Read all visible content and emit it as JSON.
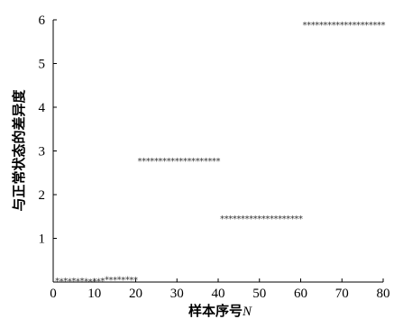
{
  "chart_data": {
    "type": "scatter",
    "xlabel": "样本序号",
    "xlabel_var": "N",
    "ylabel": "与正常状态的差异度",
    "xlim": [
      0,
      80
    ],
    "ylim": [
      0,
      6
    ],
    "xticks": [
      "0",
      "10",
      "20",
      "30",
      "40",
      "50",
      "60",
      "70",
      "80"
    ],
    "yticks": [
      "1",
      "2",
      "3",
      "4",
      "5",
      "6"
    ],
    "marker": "*",
    "grid": false,
    "series": [
      {
        "x": [
          1,
          2,
          3,
          4,
          5,
          6,
          7,
          8,
          9,
          10,
          11,
          12,
          13,
          14,
          15,
          16,
          17,
          18,
          19,
          20,
          21,
          22,
          23,
          24,
          25,
          26,
          27,
          28,
          29,
          30,
          31,
          32,
          33,
          34,
          35,
          36,
          37,
          38,
          39,
          40,
          41,
          42,
          43,
          44,
          45,
          46,
          47,
          48,
          49,
          50,
          51,
          52,
          53,
          54,
          55,
          56,
          57,
          58,
          59,
          60,
          61,
          62,
          63,
          64,
          65,
          66,
          67,
          68,
          69,
          70,
          71,
          72,
          73,
          74,
          75,
          76,
          77,
          78,
          79,
          80
        ],
        "y": [
          0.04,
          0.03,
          0.04,
          0.03,
          0.04,
          0.03,
          0.04,
          0.03,
          0.02,
          0.03,
          0.03,
          0.04,
          0.07,
          0.06,
          0.06,
          0.07,
          0.06,
          0.07,
          0.06,
          0.06,
          2.78,
          2.78,
          2.78,
          2.78,
          2.78,
          2.78,
          2.78,
          2.78,
          2.78,
          2.78,
          2.78,
          2.78,
          2.78,
          2.78,
          2.78,
          2.78,
          2.78,
          2.78,
          2.78,
          2.78,
          1.46,
          1.46,
          1.46,
          1.46,
          1.46,
          1.46,
          1.46,
          1.46,
          1.46,
          1.46,
          1.46,
          1.46,
          1.46,
          1.46,
          1.46,
          1.46,
          1.46,
          1.46,
          1.46,
          1.46,
          5.9,
          5.9,
          5.9,
          5.9,
          5.9,
          5.9,
          5.9,
          5.9,
          5.9,
          5.9,
          5.9,
          5.9,
          5.9,
          5.9,
          5.9,
          5.9,
          5.9,
          5.9,
          5.9,
          5.9
        ]
      }
    ]
  }
}
